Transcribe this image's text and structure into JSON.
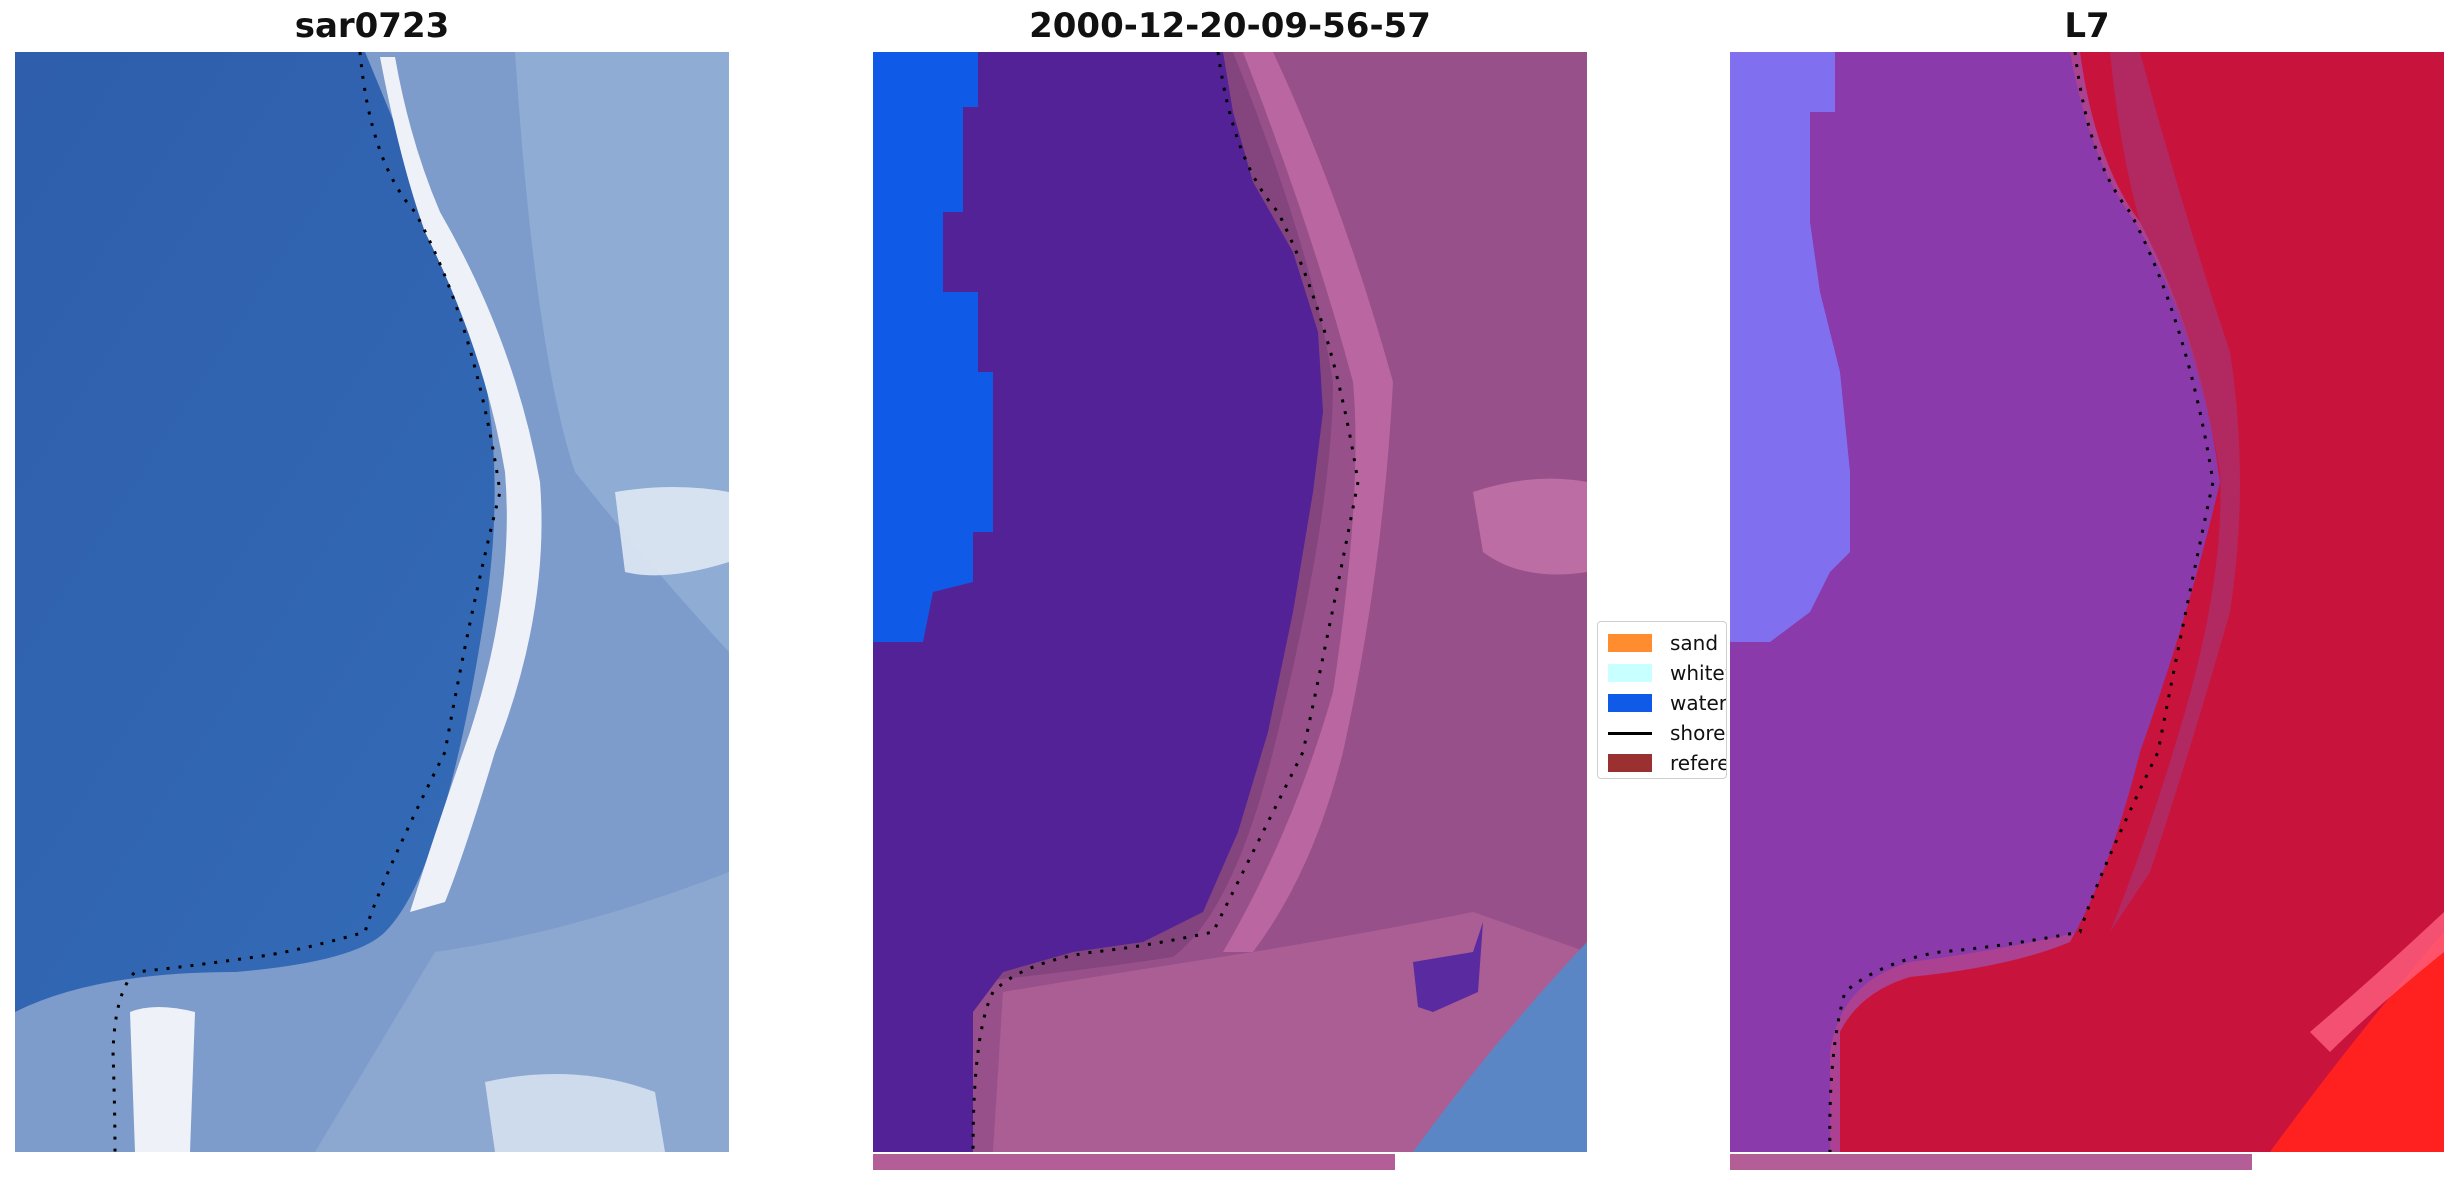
{
  "panels": [
    {
      "title": "sar0723"
    },
    {
      "title": "2000-12-20-09-56-57"
    },
    {
      "title": "L7"
    }
  ],
  "legend": {
    "items": [
      {
        "label": "sand",
        "color": "#ff8c2e",
        "kind": "patch"
      },
      {
        "label": "whitewater",
        "color": "#c8ffff",
        "kind": "patch"
      },
      {
        "label": "water",
        "color": "#0f5ae6",
        "kind": "patch"
      },
      {
        "label": "shoreline",
        "color": "#000000",
        "kind": "line"
      },
      {
        "label": "reference",
        "color": "#9b3030",
        "kind": "patch"
      }
    ]
  },
  "colors": {
    "ocean_rgb": "#2f64b0",
    "surf_white": "#e8eef6",
    "class_water": "#0f5ae6",
    "class_sea": "#522296",
    "land_pink": "#a0508a",
    "fc_water": "#8070f0",
    "fc_sea": "#8a3aaa",
    "fc_land": "#c8143c",
    "fc_bright": "#ff2020",
    "strip_color": "#b45e98"
  }
}
